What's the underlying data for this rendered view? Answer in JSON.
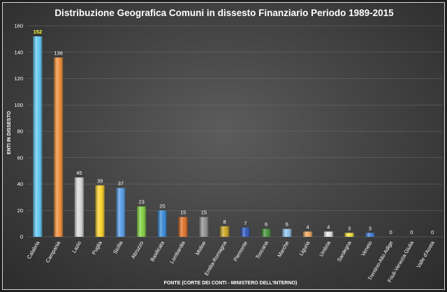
{
  "chart_data": {
    "type": "bar",
    "title": "Distribuzione Geografica Comuni in dissesto Finanziario Periodo 1989-2015",
    "xlabel": "FONTE (CORTE DEI CONTI - MINISTERO DELL'INTERNO)",
    "ylabel": "ENTI IN DISSESTO",
    "ylim": [
      0,
      160
    ],
    "yticks": [
      0,
      20,
      40,
      60,
      80,
      100,
      120,
      140,
      160
    ],
    "grid": true,
    "categories": [
      "Calabria",
      "Campania",
      "Lazio",
      "Puglia",
      "Sicilia",
      "Abruzzo",
      "Basilicata",
      "Lombardia",
      "Molise",
      "Emilia-Romagna",
      "Piemonte",
      "Toscana",
      "Marche",
      "Liguria",
      "Umbria",
      "Sardegna",
      "Veneto",
      "Trentino-Alto Adige",
      "Friuli-Venezia Giulia",
      "Valle d'Aosta"
    ],
    "values": [
      152,
      136,
      45,
      39,
      37,
      23,
      20,
      15,
      15,
      8,
      7,
      6,
      6,
      4,
      4,
      3,
      3,
      0,
      0,
      0
    ],
    "colors": [
      "#5bc8f5",
      "#f28a30",
      "#d9d9d9",
      "#ffd21f",
      "#4f97e8",
      "#7fcf3c",
      "#2f86d6",
      "#e06b1f",
      "#8c8c8c",
      "#c9a41a",
      "#2850b8",
      "#3f8f34",
      "#8ec4ee",
      "#f0a55a",
      "#e8e8e8",
      "#f2e237",
      "#3478d8",
      "#999999",
      "#999999",
      "#999999"
    ],
    "highlight_index": 0
  }
}
